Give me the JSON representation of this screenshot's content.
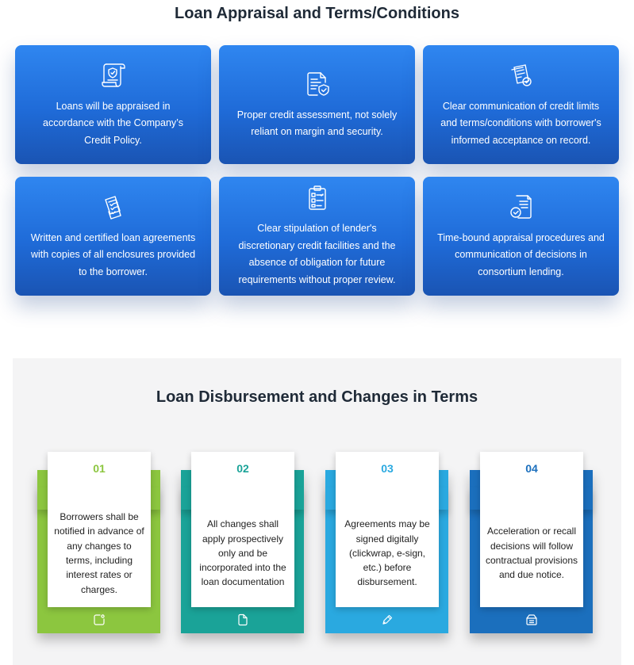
{
  "section1": {
    "title": "Loan Appraisal and Terms/Conditions",
    "cards": [
      {
        "icon": "certificate-scroll-icon",
        "text": "Loans will be appraised in accordance with the Company’s Credit Policy."
      },
      {
        "icon": "document-shield-icon",
        "text": "Proper credit assessment, not solely reliant on margin and security."
      },
      {
        "icon": "documents-check-icon",
        "text": "Clear communication of credit limits and terms/conditions with borrower's informed acceptance on record."
      },
      {
        "icon": "documents-checklist-icon",
        "text": "Written and certified loan agreements with copies of all enclosures provided to the borrower."
      },
      {
        "icon": "clipboard-checklist-icon",
        "text": "Clear stipulation of lender's discretionary credit facilities and the absence of obligation for future requirements without proper review."
      },
      {
        "icon": "document-check-badge-icon",
        "text": "Time-bound appraisal procedures and communication of decisions in consortium lending."
      }
    ]
  },
  "section2": {
    "title": "Loan Disbursement and Changes in Terms",
    "steps": [
      {
        "number": "01",
        "color": "#8cc63f",
        "icon": "note-icon",
        "text": "Borrowers shall be notified in advance of any changes to terms, including interest rates or charges."
      },
      {
        "number": "02",
        "color": "#1aa398",
        "icon": "file-icon",
        "text": "All changes shall apply prospectively only and be incorporated into the loan documentation"
      },
      {
        "number": "03",
        "color": "#2aa9e0",
        "icon": "pen-icon",
        "text": "Agreements may be signed digitally (clickwrap, e-sign, etc.) before disbursement."
      },
      {
        "number": "04",
        "color": "#1b6fbd",
        "icon": "inbox-icon",
        "text": "Acceleration or recall decisions will follow contractual provisions and due notice."
      }
    ]
  }
}
